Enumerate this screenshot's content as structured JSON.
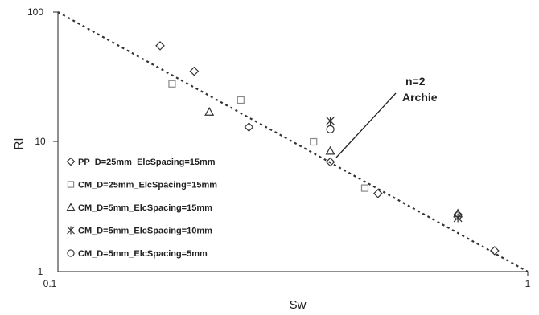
{
  "chart_data": {
    "type": "scatter",
    "x_scale": "log",
    "y_scale": "log",
    "xlim": [
      0.1,
      1
    ],
    "ylim": [
      1,
      100
    ],
    "xlabel": "Sw",
    "ylabel": "RI",
    "x_ticks": [
      "0.1",
      "1"
    ],
    "y_ticks": [
      "1",
      "10",
      "100"
    ],
    "grid": false,
    "legend_position": "lower-left",
    "annotation": {
      "lines": [
        "n=2",
        "Archie"
      ]
    },
    "reference_line": {
      "name": "Archie n=2",
      "style": "dotted",
      "x": [
        0.1,
        1
      ],
      "y": [
        100,
        1
      ]
    },
    "series": [
      {
        "name": "PP_D=25mm_ElcSpacing=15mm",
        "marker": "diamond",
        "x": [
          0.165,
          0.195,
          0.255,
          0.38,
          0.48,
          0.85
        ],
        "y": [
          55,
          35,
          13,
          7,
          4,
          1.45
        ]
      },
      {
        "name": "CM_D=25mm_ElcSpacing=15mm",
        "marker": "square",
        "x": [
          0.175,
          0.245,
          0.35,
          0.45
        ],
        "y": [
          28,
          21,
          10,
          4.4
        ]
      },
      {
        "name": "CM_D=5mm_ElcSpacing=15mm",
        "marker": "triangle",
        "x": [
          0.21,
          0.38,
          0.71
        ],
        "y": [
          17,
          8.5,
          2.8
        ]
      },
      {
        "name": "CM_D=5mm_ElcSpacing=10mm",
        "marker": "star",
        "x": [
          0.38,
          0.71
        ],
        "y": [
          14.5,
          2.6
        ]
      },
      {
        "name": "CM_D=5mm_ElcSpacing=5mm",
        "marker": "circle",
        "x": [
          0.38,
          0.71
        ],
        "y": [
          12.5,
          2.7
        ]
      }
    ]
  }
}
